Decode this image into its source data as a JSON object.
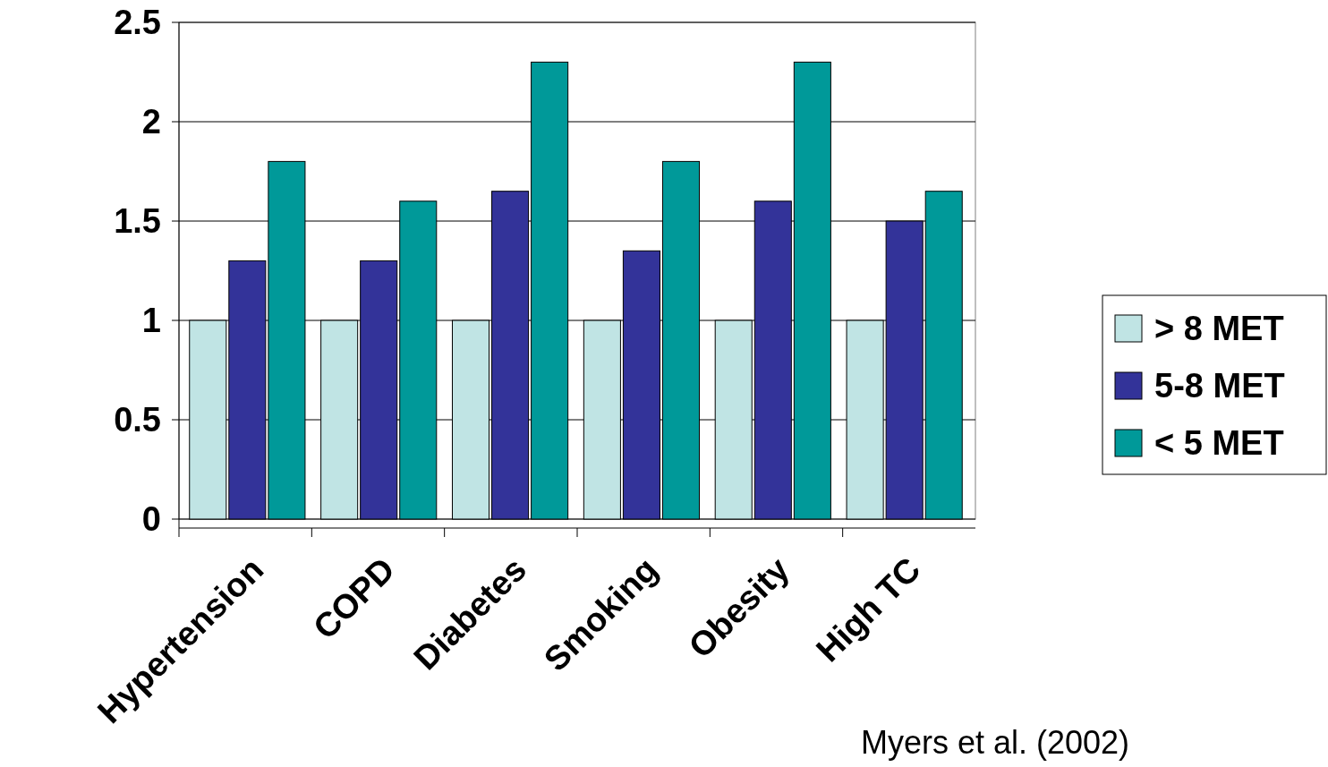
{
  "chart_data": {
    "type": "bar",
    "categories": [
      "Hypertension",
      "COPD",
      "Diabetes",
      "Smoking",
      "Obesity",
      "High TC"
    ],
    "series": [
      {
        "name": "> 8 MET",
        "color": "#c0e4e4",
        "values": [
          1,
          1,
          1,
          1,
          1,
          1
        ]
      },
      {
        "name": "5-8 MET",
        "color": "#333399",
        "values": [
          1.3,
          1.3,
          1.65,
          1.35,
          1.6,
          1.5
        ]
      },
      {
        "name": "< 5 MET",
        "color": "#009999",
        "values": [
          1.8,
          1.6,
          2.3,
          1.8,
          2.3,
          1.65
        ]
      }
    ],
    "ylim": [
      0,
      2.5
    ],
    "yticks": [
      0,
      0.5,
      1,
      1.5,
      2,
      2.5
    ],
    "grid": "y",
    "legend": "right",
    "annotations": [
      "Myers et al. (2002)"
    ]
  }
}
